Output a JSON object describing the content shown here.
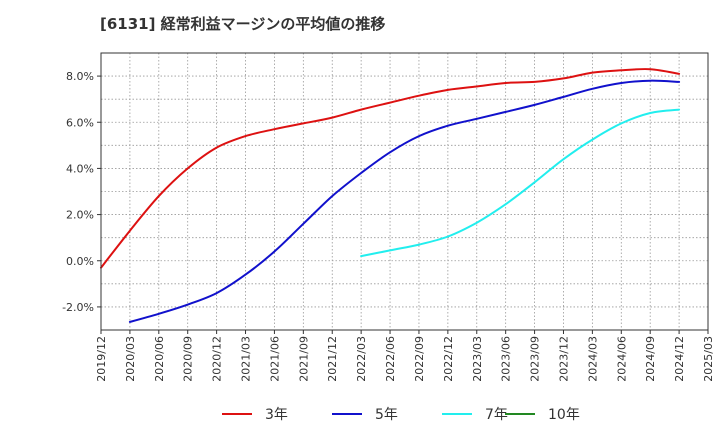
{
  "chart_data": {
    "type": "line",
    "title": "[6131]  経常利益マージンの平均値の推移",
    "xlabel": "",
    "ylabel": "",
    "ylim": [
      -3.0,
      9.0
    ],
    "y_ticks": [
      -2.0,
      0.0,
      2.0,
      4.0,
      6.0,
      8.0
    ],
    "y_tick_labels": [
      "-2.0%",
      "0.0%",
      "2.0%",
      "4.0%",
      "6.0%",
      "8.0%"
    ],
    "x_ticks": [
      "2019/12",
      "2020/03",
      "2020/06",
      "2020/09",
      "2020/12",
      "2021/03",
      "2021/06",
      "2021/09",
      "2021/12",
      "2022/03",
      "2022/06",
      "2022/09",
      "2022/12",
      "2023/03",
      "2023/06",
      "2023/09",
      "2023/12",
      "2024/03",
      "2024/06",
      "2024/09",
      "2024/12",
      "2025/03"
    ],
    "grid": true,
    "legend_position": "bottom",
    "series": [
      {
        "name": "3年",
        "color": "#dd1111",
        "x": [
          "2019/12",
          "2020/03",
          "2020/06",
          "2020/09",
          "2020/12",
          "2021/03",
          "2021/06",
          "2021/09",
          "2021/12",
          "2022/03",
          "2022/06",
          "2022/09",
          "2022/12",
          "2023/03",
          "2023/06",
          "2023/09",
          "2023/12",
          "2024/03",
          "2024/06",
          "2024/09",
          "2024/12"
        ],
        "values": [
          -0.3,
          1.3,
          2.8,
          4.0,
          4.9,
          5.4,
          5.7,
          5.95,
          6.2,
          6.55,
          6.85,
          7.15,
          7.4,
          7.55,
          7.7,
          7.75,
          7.9,
          8.15,
          8.25,
          8.3,
          8.1
        ]
      },
      {
        "name": "5年",
        "color": "#1111cc",
        "x": [
          "2020/03",
          "2020/06",
          "2020/09",
          "2020/12",
          "2021/03",
          "2021/06",
          "2021/09",
          "2021/12",
          "2022/03",
          "2022/06",
          "2022/09",
          "2022/12",
          "2023/03",
          "2023/06",
          "2023/09",
          "2023/12",
          "2024/03",
          "2024/06",
          "2024/09",
          "2024/12"
        ],
        "values": [
          -2.65,
          -2.3,
          -1.9,
          -1.4,
          -0.6,
          0.4,
          1.6,
          2.8,
          3.8,
          4.7,
          5.4,
          5.85,
          6.15,
          6.45,
          6.75,
          7.1,
          7.45,
          7.7,
          7.8,
          7.75
        ]
      },
      {
        "name": "7年",
        "color": "#22eeee",
        "x": [
          "2022/03",
          "2022/06",
          "2022/09",
          "2022/12",
          "2023/03",
          "2023/06",
          "2023/09",
          "2023/12",
          "2024/03",
          "2024/06",
          "2024/09",
          "2024/12"
        ],
        "values": [
          0.2,
          0.45,
          0.7,
          1.05,
          1.65,
          2.45,
          3.4,
          4.4,
          5.25,
          5.95,
          6.4,
          6.55
        ]
      },
      {
        "name": "10年",
        "color": "#228822",
        "x": [],
        "values": []
      }
    ]
  }
}
